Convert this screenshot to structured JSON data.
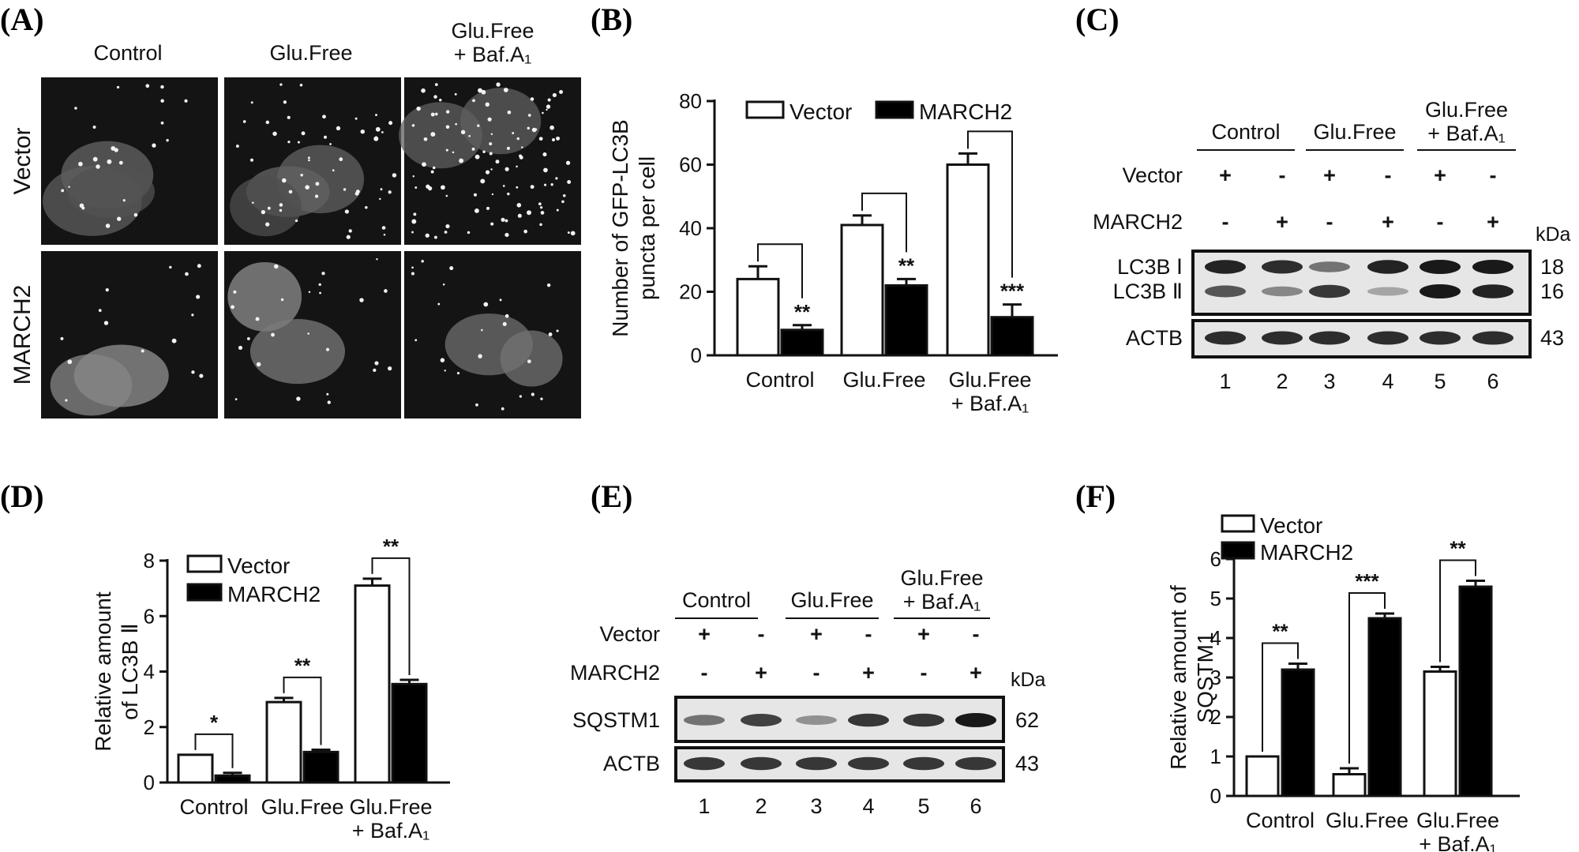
{
  "panel_labels": [
    "(A)",
    "(B)",
    "(C)",
    "(D)",
    "(E)",
    "(F)"
  ],
  "micrographs": {
    "columns": [
      "Control",
      "Glu.Free",
      "Glu.Free\n+ Baf.A₁"
    ],
    "rows": [
      "Vector",
      "MARCH2"
    ]
  },
  "blot_c": {
    "groups": [
      "Control",
      "Glu.Free",
      "Glu.Free\n+ Baf.A₁"
    ],
    "rows": [
      {
        "label": "Vector",
        "signs": [
          "+",
          "-",
          "+",
          "-",
          "+",
          "-"
        ]
      },
      {
        "label": "MARCH2",
        "signs": [
          "-",
          "+",
          "-",
          "+",
          "-",
          "+"
        ]
      }
    ],
    "unit": "kDa",
    "bands": [
      {
        "label": "LC3B Ⅰ",
        "kda": "18",
        "intensity": [
          0.95,
          0.9,
          0.55,
          0.95,
          1.0,
          1.0
        ]
      },
      {
        "label": "LC3B Ⅱ",
        "kda": "16",
        "intensity": [
          0.7,
          0.45,
          0.85,
          0.3,
          1.0,
          0.95
        ]
      },
      {
        "label": "ACTB",
        "kda": "43",
        "intensity": [
          0.9,
          0.9,
          0.9,
          0.9,
          0.9,
          0.9
        ]
      }
    ],
    "lanes": [
      "1",
      "2",
      "3",
      "4",
      "5",
      "6"
    ]
  },
  "blot_e": {
    "groups": [
      "Control",
      "Glu.Free",
      "Glu.Free\n+ Baf.A₁"
    ],
    "rows": [
      {
        "label": "Vector",
        "signs": [
          "+",
          "-",
          "+",
          "-",
          "+",
          "-"
        ]
      },
      {
        "label": "MARCH2",
        "signs": [
          "-",
          "+",
          "-",
          "+",
          "-",
          "+"
        ]
      }
    ],
    "unit": "kDa",
    "bands": [
      {
        "label": "SQSTM1",
        "kda": "62",
        "intensity": [
          0.55,
          0.8,
          0.4,
          0.85,
          0.85,
          1.0
        ]
      },
      {
        "label": "ACTB",
        "kda": "43",
        "intensity": [
          0.85,
          0.85,
          0.85,
          0.85,
          0.85,
          0.85
        ]
      }
    ],
    "lanes": [
      "1",
      "2",
      "3",
      "4",
      "5",
      "6"
    ]
  },
  "chart_data": [
    {
      "panel": "B",
      "type": "bar",
      "ylabel": "Number of GFP-LC3B\npuncta per cell",
      "categories": [
        "Control",
        "Glu.Free",
        "Glu.Free\n+ Baf.A₁"
      ],
      "ylim": [
        0,
        80
      ],
      "yticks": [
        0,
        20,
        40,
        60,
        80
      ],
      "legend_position": "top",
      "series": [
        {
          "name": "Vector",
          "color": "#ffffff",
          "values": [
            24,
            41,
            60
          ],
          "errors": [
            4,
            3,
            3.5
          ]
        },
        {
          "name": "MARCH2",
          "color": "#000000",
          "values": [
            8,
            22,
            12
          ],
          "errors": [
            1.5,
            2,
            4
          ]
        }
      ],
      "significance": [
        "**",
        "**",
        "***"
      ]
    },
    {
      "panel": "D",
      "type": "bar",
      "ylabel": "Relative amount\nof LC3B Ⅱ",
      "categories": [
        "Control",
        "Glu.Free",
        "Glu.Free\n+ Baf.A₁"
      ],
      "ylim": [
        0,
        8
      ],
      "yticks": [
        0,
        2,
        4,
        6,
        8
      ],
      "legend_position": "top-left",
      "series": [
        {
          "name": "Vector",
          "color": "#ffffff",
          "values": [
            1.0,
            2.9,
            7.1
          ],
          "errors": [
            0,
            0.15,
            0.25
          ]
        },
        {
          "name": "MARCH2",
          "color": "#000000",
          "values": [
            0.25,
            1.1,
            3.55
          ],
          "errors": [
            0.1,
            0.08,
            0.15
          ]
        }
      ],
      "significance": [
        "*",
        "**",
        "**"
      ]
    },
    {
      "panel": "F",
      "type": "bar",
      "ylabel": "Relative amount of\nSQSTM1",
      "categories": [
        "Control",
        "Glu.Free",
        "Glu.Free\n+ Baf.A₁"
      ],
      "ylim": [
        0,
        6
      ],
      "yticks": [
        0,
        1,
        2,
        3,
        4,
        5,
        6
      ],
      "legend_position": "top-left",
      "series": [
        {
          "name": "Vector",
          "color": "#ffffff",
          "values": [
            1.0,
            0.55,
            3.15
          ],
          "errors": [
            0,
            0.15,
            0.12
          ]
        },
        {
          "name": "MARCH2",
          "color": "#000000",
          "values": [
            3.2,
            4.5,
            5.3
          ],
          "errors": [
            0.15,
            0.12,
            0.15
          ]
        }
      ],
      "significance": [
        "**",
        "***",
        "**"
      ]
    }
  ]
}
